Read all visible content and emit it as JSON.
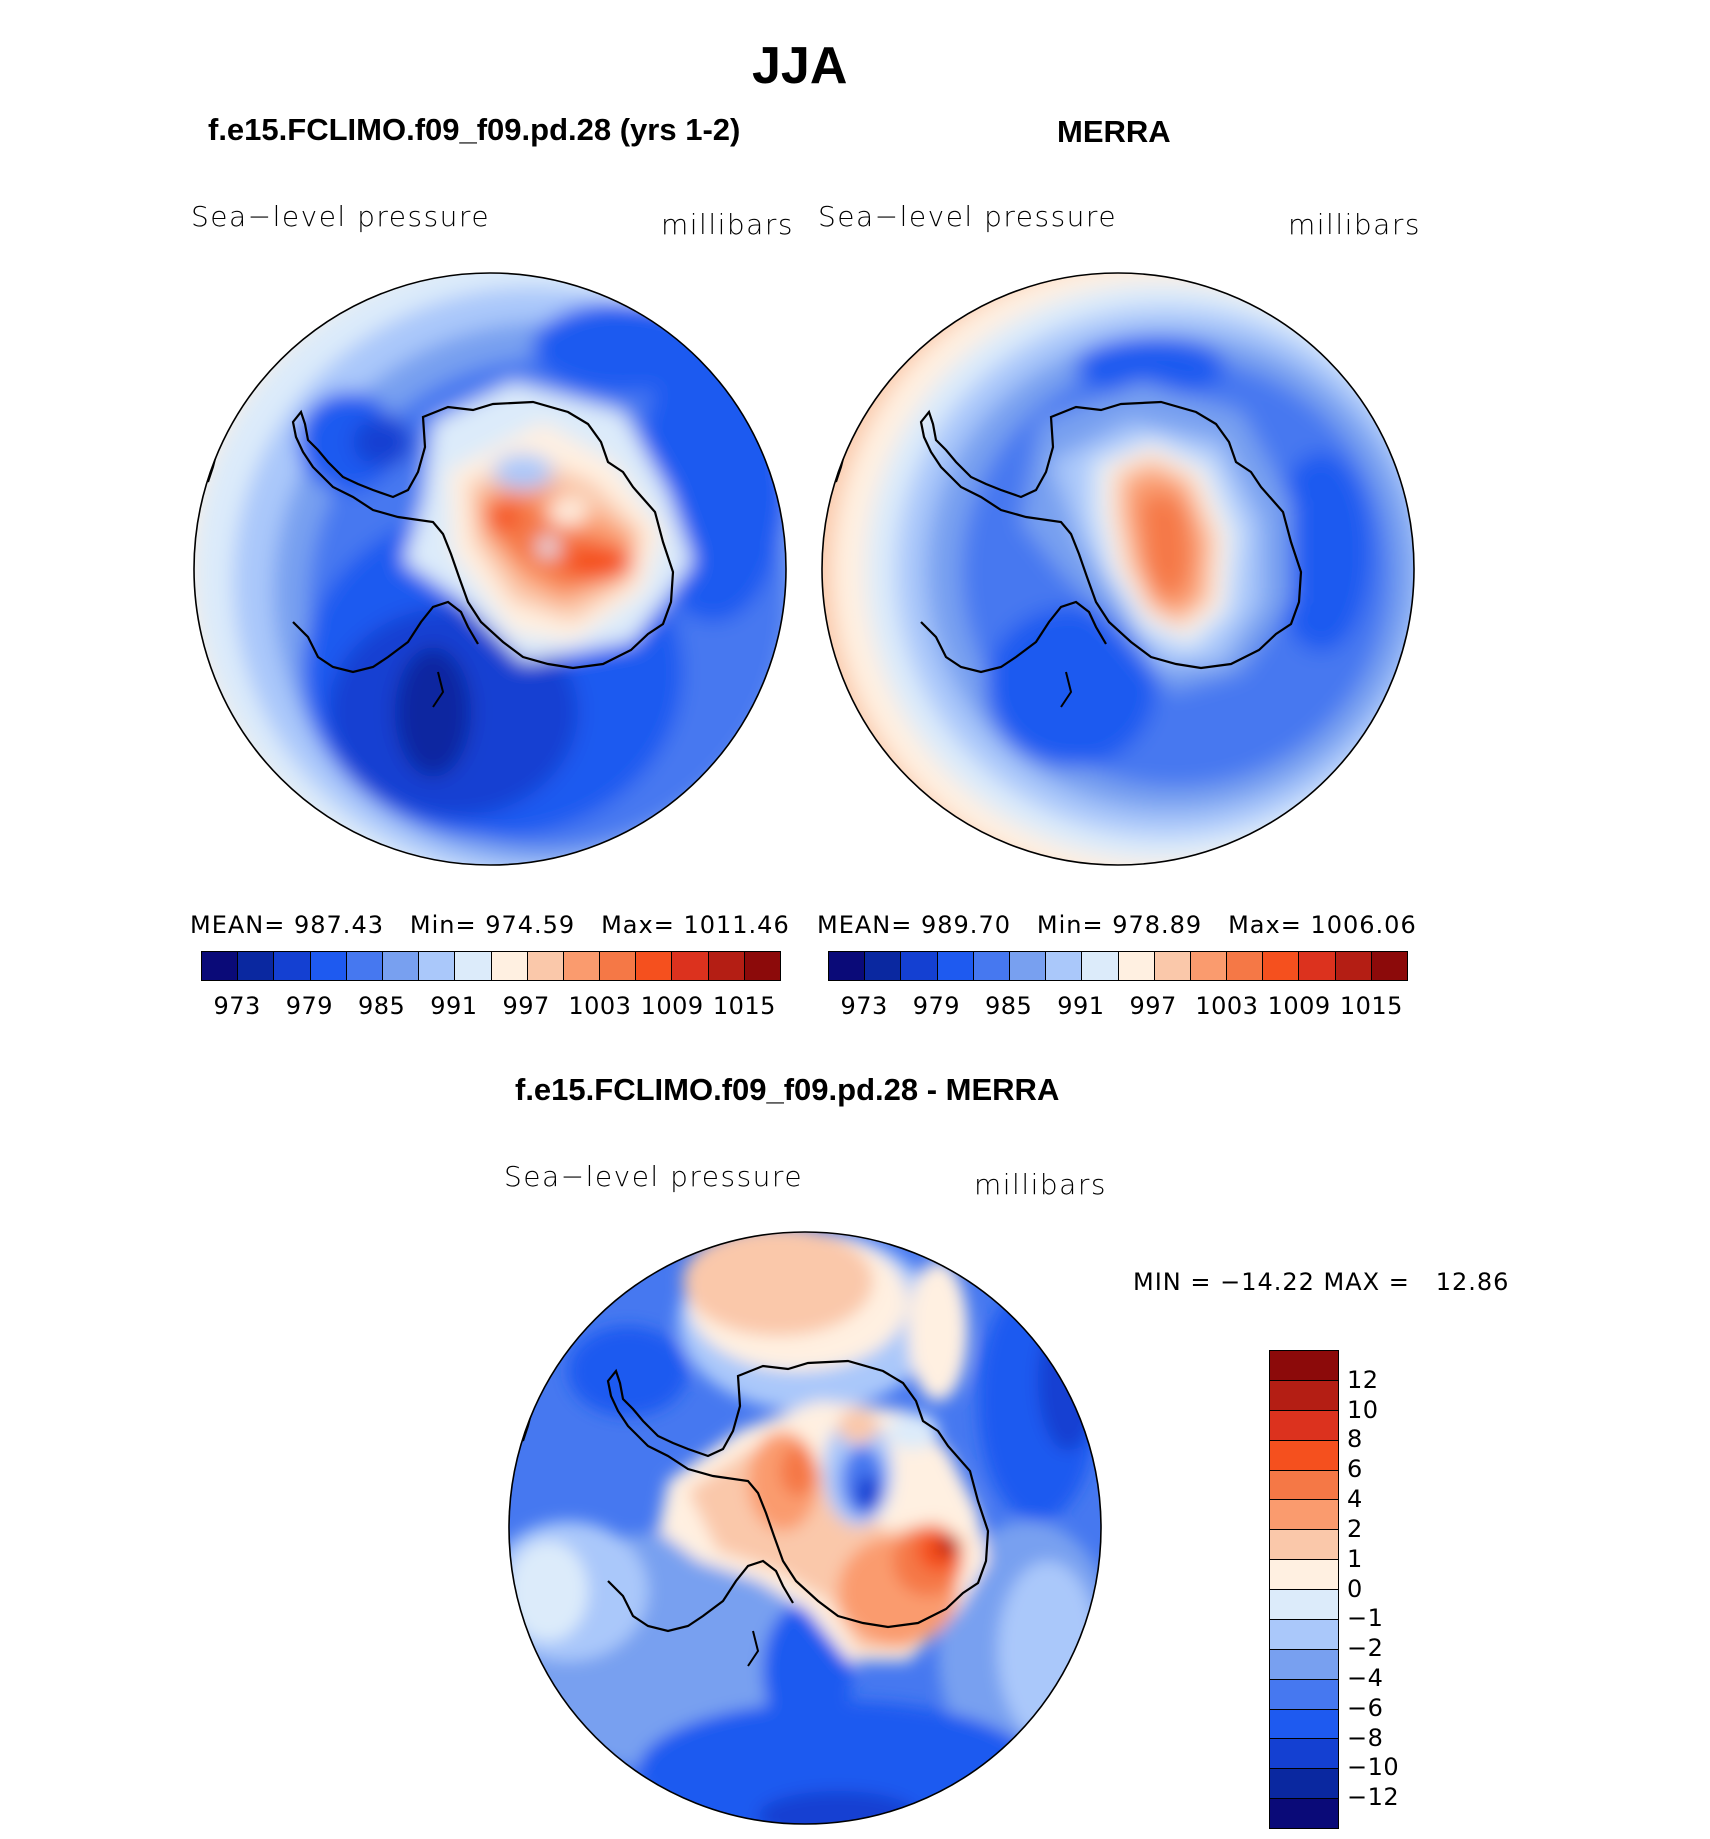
{
  "title": "JJA",
  "colors": {
    "abs": [
      "#0a0a78",
      "#0a28a0",
      "#1440d2",
      "#1e5af0",
      "#4678f0",
      "#78a0f0",
      "#aac8fa",
      "#dcebfa",
      "#fff0e1",
      "#fac8aa",
      "#fa9b6e",
      "#f57846",
      "#f5501e",
      "#dc321e",
      "#b41e14",
      "#8c0a0a"
    ],
    "diff": [
      "#8c0a0a",
      "#b41e14",
      "#dc321e",
      "#f5501e",
      "#f57846",
      "#fa9b6e",
      "#fac8aa",
      "#fff0e1",
      "#dcebfa",
      "#aac8fa",
      "#78a0f0",
      "#4678f0",
      "#1e5af0",
      "#1440d2",
      "#0a28a0",
      "#0a0a78"
    ]
  },
  "panels": [
    {
      "title": "f.e15.FCLIMO.f09_f09.pd.28 (yrs 1-2)",
      "variable": "Sea−level pressure",
      "units": "millibars",
      "stats": {
        "mean_label": "MEAN=",
        "mean": "987.43",
        "min_label": "Min=",
        "min": "974.59",
        "max_label": "Max=",
        "max": "1011.46"
      },
      "ticks": [
        "973",
        "979",
        "985",
        "991",
        "997",
        "1003",
        "1009",
        "1015"
      ]
    },
    {
      "title": "MERRA",
      "variable": "Sea−level pressure",
      "units": "millibars",
      "stats": {
        "mean_label": "MEAN=",
        "mean": "989.70",
        "min_label": "Min=",
        "min": "978.89",
        "max_label": "Max=",
        "max": "1006.06"
      },
      "ticks": [
        "973",
        "979",
        "985",
        "991",
        "997",
        "1003",
        "1009",
        "1015"
      ]
    }
  ],
  "diff_panel": {
    "title": "f.e15.FCLIMO.f09_f09.pd.28 - MERRA",
    "variable": "Sea−level pressure",
    "units": "millibars",
    "minmax": "MIN = −14.22 MAX =   12.86",
    "ticks": [
      "12",
      "10",
      "8",
      "6",
      "4",
      "2",
      "1",
      "0",
      "−1",
      "−2",
      "−4",
      "−6",
      "−8",
      "−10",
      "−12"
    ]
  }
}
